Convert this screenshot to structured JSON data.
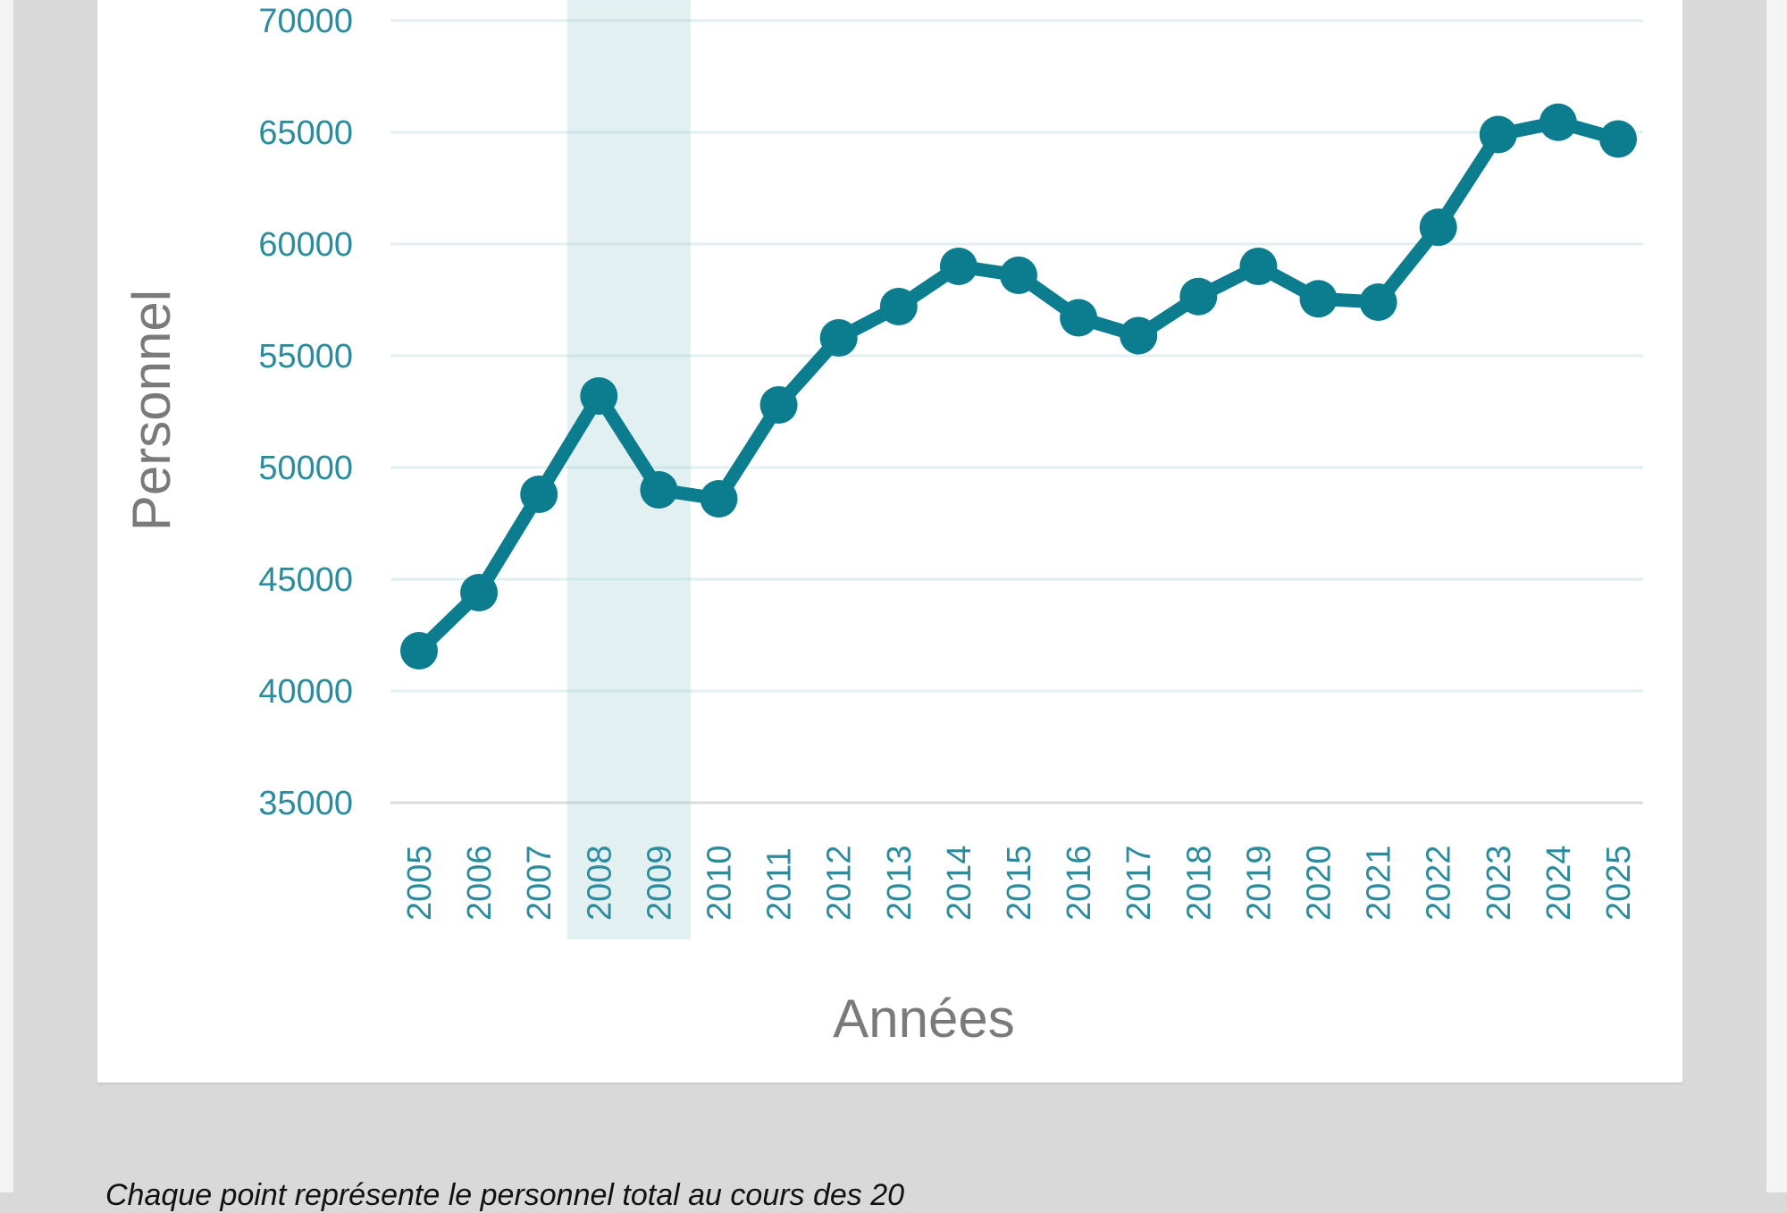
{
  "chart_data": {
    "type": "line",
    "title": "",
    "xlabel": "Années",
    "ylabel": "Personnel",
    "ylim": [
      35000,
      70000
    ],
    "yticks": [
      35000,
      40000,
      45000,
      50000,
      55000,
      60000,
      65000,
      70000
    ],
    "grid": true,
    "highlight_range": [
      "2008",
      "2009"
    ],
    "categories": [
      "2005",
      "2006",
      "2007",
      "2008",
      "2009",
      "2010",
      "2011",
      "2012",
      "2013",
      "2014",
      "2015",
      "2016",
      "2017",
      "2018",
      "2019",
      "2020",
      "2021",
      "2022",
      "2023",
      "2024",
      "2025"
    ],
    "series": [
      {
        "name": "Personnel",
        "color": "#0b7d8e",
        "values": [
          41800,
          44400,
          48800,
          53200,
          49000,
          48600,
          52800,
          55800,
          57200,
          59000,
          58600,
          56700,
          55900,
          57650,
          59000,
          57550,
          57400,
          60750,
          64900,
          65450,
          64700
        ]
      }
    ]
  },
  "caption": "Chaque point représente le personnel total au cours des 20"
}
